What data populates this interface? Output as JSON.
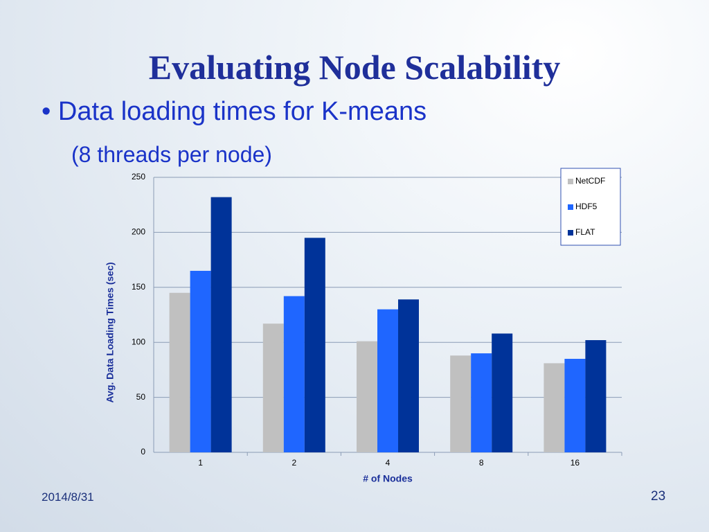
{
  "slide": {
    "title": "Evaluating Node Scalability",
    "bullet": "Data loading times for K-means",
    "subbullet": "(8 threads per node)",
    "date": "2014/8/31",
    "page_number": "23"
  },
  "chart_data": {
    "type": "bar",
    "x_label": "# of Nodes",
    "y_label": "Avg. Data Loading Times (sec)",
    "categories": [
      "1",
      "2",
      "4",
      "8",
      "16"
    ],
    "series": [
      {
        "name": "NetCDF",
        "color": "#c0c0c0",
        "values": [
          145,
          117,
          101,
          88,
          81
        ]
      },
      {
        "name": "HDF5",
        "color": "#1f66ff",
        "values": [
          165,
          142,
          130,
          90,
          85
        ]
      },
      {
        "name": "FLAT",
        "color": "#003399",
        "values": [
          232,
          195,
          139,
          108,
          102
        ]
      }
    ],
    "ylim": [
      0,
      250
    ],
    "yticks": [
      0,
      50,
      100,
      150,
      200,
      250
    ],
    "grid": true,
    "legend": "top-right"
  }
}
